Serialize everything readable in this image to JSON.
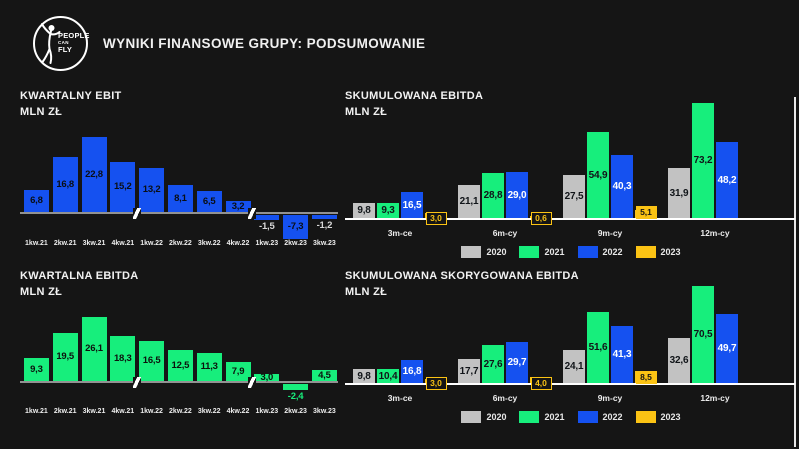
{
  "header": {
    "title": "WYNIKI FINANSOWE GRUPY: PODSUMOWANIE",
    "logo": {
      "line1": "PEOPLE",
      "line2": "CAN",
      "line3": "FLY"
    }
  },
  "colors": {
    "background": "#151515",
    "blue": "#1551f0",
    "green": "#17ee7c",
    "gray": "#c2c2c2",
    "yellow": "#fbc314",
    "axis_left": "#929292",
    "axis_right": "#ffffff"
  },
  "chart_data": [
    {
      "id": "kwartalny-ebit",
      "type": "bar",
      "title": "KWARTALNY EBIT",
      "unit": "MLN ZŁ",
      "categories": [
        "1kw.21",
        "2kw.21",
        "3kw.21",
        "4kw.21",
        "1kw.22",
        "2kw.22",
        "3kw.22",
        "4kw.22",
        "1kw.23",
        "2kw.23",
        "3kw.23"
      ],
      "values": [
        6.8,
        16.8,
        22.8,
        15.2,
        13.2,
        8.1,
        6.5,
        3.2,
        -1.5,
        -7.3,
        -1.2
      ],
      "value_labels": [
        "6,8",
        "16,8",
        "22,8",
        "15,2",
        "13,2",
        "8,1",
        "6,5",
        "3,2",
        "-1,5",
        "-7,3",
        "-1,2"
      ],
      "bar_color": "#1551f0",
      "label_color": "#0a0e14",
      "outside_label_color": "#d9d9d9",
      "labels_below": [
        8,
        10
      ],
      "axis_breaks_after": [
        3,
        7
      ],
      "ylim": [
        -8,
        24
      ],
      "grid": "off"
    },
    {
      "id": "kwartalna-ebitda",
      "type": "bar",
      "title": "KWARTALNA EBITDA",
      "unit": "MLN ZŁ",
      "categories": [
        "1kw.21",
        "2kw.21",
        "3kw.21",
        "4kw.21",
        "1kw.22",
        "2kw.22",
        "3kw.22",
        "4kw.22",
        "1kw.23",
        "2kw.23",
        "3kw.23"
      ],
      "values": [
        9.3,
        19.5,
        26.1,
        18.3,
        16.5,
        12.5,
        11.3,
        7.9,
        3.0,
        -2.4,
        4.5
      ],
      "value_labels": [
        "9,3",
        "19,5",
        "26,1",
        "18,3",
        "16,5",
        "12,5",
        "11,3",
        "7,9",
        "3,0",
        "-2,4",
        "4,5"
      ],
      "bar_color": "#17ee7c",
      "label_color": "#0c120d",
      "outside_label_color": "#17ee7c",
      "labels_below": [
        9
      ],
      "axis_breaks_after": [
        3,
        7
      ],
      "ylim": [
        -3,
        27
      ],
      "grid": "off"
    },
    {
      "id": "skumulowana-ebitda",
      "type": "grouped-bar",
      "title": "SKUMULOWANA EBITDA",
      "unit": "MLN ZŁ",
      "categories": [
        "3m-ce",
        "6m-cy",
        "9m-cy",
        "12m-cy"
      ],
      "series": [
        {
          "name": "2020",
          "color": "#c2c2c2",
          "text": "#101418",
          "values": [
            9.8,
            21.1,
            27.5,
            31.9
          ],
          "labels": [
            "9,8",
            "21,1",
            "27,5",
            "31,9"
          ]
        },
        {
          "name": "2021",
          "color": "#17ee7c",
          "text": "#101418",
          "values": [
            9.3,
            28.8,
            54.9,
            73.2
          ],
          "labels": [
            "9,3",
            "28,8",
            "54,9",
            "73,2"
          ]
        },
        {
          "name": "2022",
          "color": "#1551f0",
          "text": "#ffffff",
          "values": [
            16.5,
            29.0,
            40.3,
            48.2
          ],
          "labels": [
            "16,5",
            "29,0",
            "40,3",
            "48,2"
          ]
        },
        {
          "name": "2023",
          "color": "#fbc314",
          "text": "#101418",
          "values": [
            3.0,
            0.6,
            5.1,
            null
          ],
          "labels": [
            "3,0",
            "0,6",
            "5,1",
            null
          ],
          "callout": [
            "outline",
            "outline",
            "solid",
            null
          ]
        }
      ],
      "legend": [
        "2020",
        "2021",
        "2022",
        "2023"
      ],
      "legend_position": "bottom",
      "ylim": [
        0,
        75
      ],
      "grid": "off"
    },
    {
      "id": "skumulowana-skorygowana-ebitda",
      "type": "grouped-bar",
      "title": "SKUMULOWANA SKORYGOWANA EBITDA",
      "unit": "MLN ZŁ",
      "categories": [
        "3m-ce",
        "6m-cy",
        "9m-cy",
        "12m-cy"
      ],
      "series": [
        {
          "name": "2020",
          "color": "#c2c2c2",
          "text": "#101418",
          "values": [
            9.8,
            17.7,
            24.1,
            32.6
          ],
          "labels": [
            "9,8",
            "17,7",
            "24,1",
            "32,6"
          ]
        },
        {
          "name": "2021",
          "color": "#17ee7c",
          "text": "#101418",
          "values": [
            10.4,
            27.6,
            51.6,
            70.5
          ],
          "labels": [
            "10,4",
            "27,6",
            "51,6",
            "70,5"
          ]
        },
        {
          "name": "2022",
          "color": "#1551f0",
          "text": "#ffffff",
          "values": [
            16.8,
            29.7,
            41.3,
            49.7
          ],
          "labels": [
            "16,8",
            "29,7",
            "41,3",
            "49,7"
          ]
        },
        {
          "name": "2023",
          "color": "#fbc314",
          "text": "#101418",
          "values": [
            3.0,
            4.0,
            8.5,
            null
          ],
          "labels": [
            "3,0",
            "4,0",
            "8,5",
            null
          ],
          "callout": [
            "outline",
            "outline",
            "solid",
            null
          ]
        }
      ],
      "legend": [
        "2020",
        "2021",
        "2022",
        "2023"
      ],
      "legend_position": "bottom",
      "ylim": [
        0,
        72
      ],
      "grid": "off"
    }
  ]
}
